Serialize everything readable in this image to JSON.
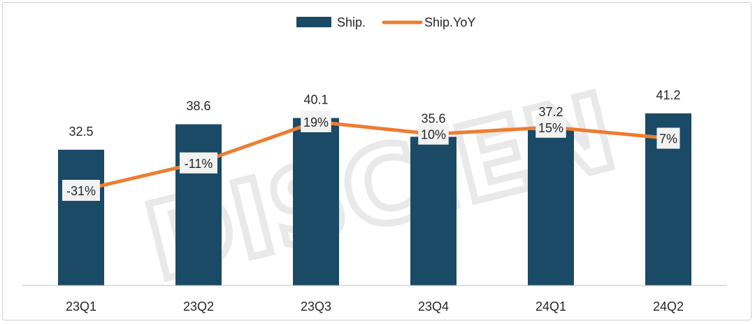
{
  "chart_data": {
    "type": "bar",
    "categories": [
      "23Q1",
      "23Q2",
      "23Q3",
      "23Q4",
      "24Q1",
      "24Q2"
    ],
    "series": [
      {
        "name": "Ship.",
        "kind": "bar",
        "values": [
          32.5,
          38.6,
          40.1,
          35.6,
          37.2,
          41.2
        ]
      },
      {
        "name": "Ship.YoY",
        "kind": "line",
        "axis": "secondary",
        "values": [
          -31,
          -11,
          19,
          10,
          15,
          7
        ],
        "labels": [
          "-31%",
          "-11%",
          "19%",
          "10%",
          "15%",
          "7%"
        ]
      }
    ],
    "ylim": [
      0,
      45
    ],
    "y2lim": [
      -70,
      50
    ],
    "grid": false,
    "legend": "top-center",
    "colors": {
      "bar": "#1a4a66",
      "line": "#ed7d31",
      "axis": "#bfbfbf"
    }
  },
  "watermark": "DISCIEN"
}
